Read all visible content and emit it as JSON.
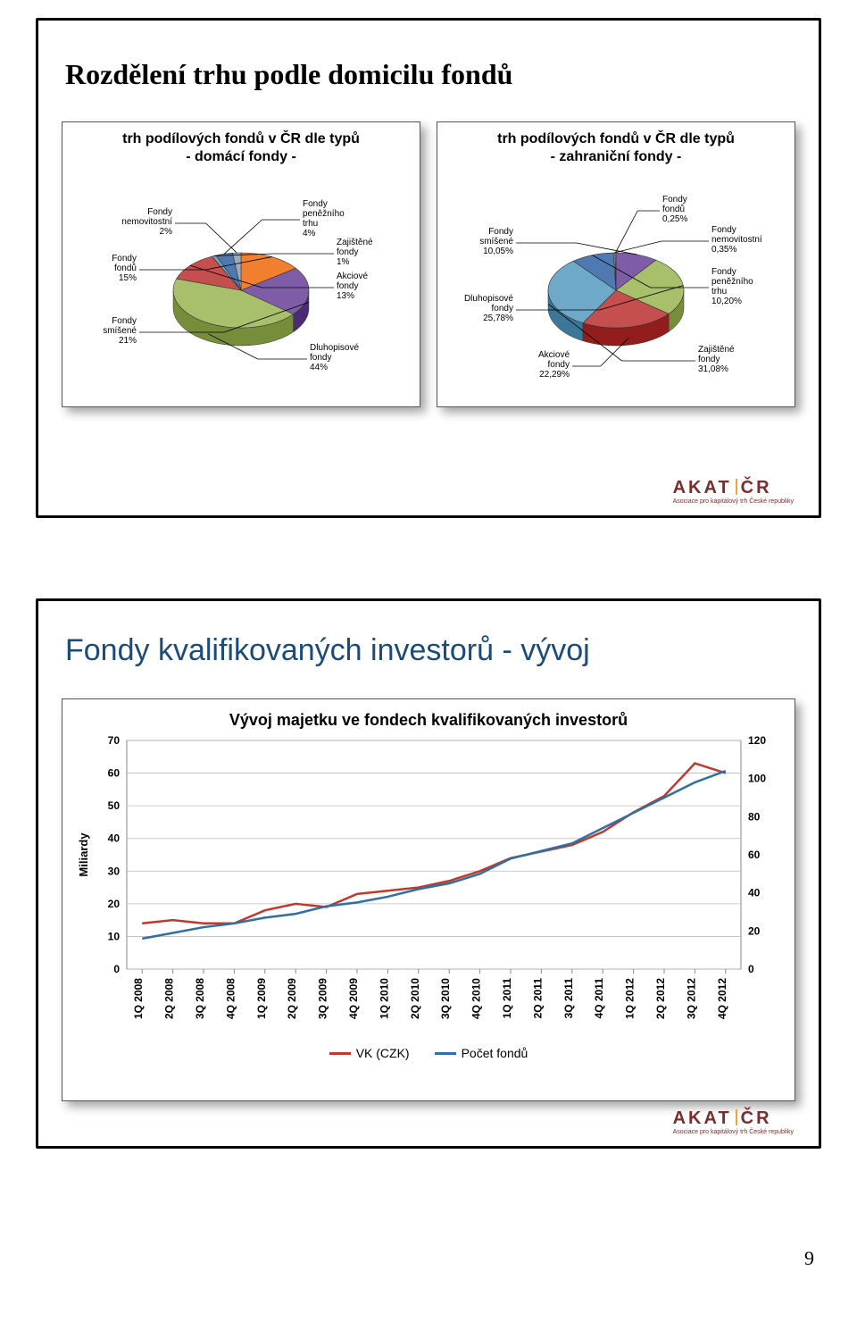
{
  "page_number": "9",
  "slide1": {
    "title": "Rozdělení trhu podle domicilu fondů",
    "left_pie": {
      "type": "pie",
      "title_line1": "trh podílových fondů v ČR dle typů",
      "title_line2": "- domácí fondy -",
      "slices": [
        {
          "label": "Fondy fondů",
          "value": 15,
          "pct": "15%",
          "color": "#f27f2e"
        },
        {
          "label": "Fondy smíšené",
          "value": 21,
          "pct": "21%",
          "color": "#7f5da6"
        },
        {
          "label": "Dluhopisové fondy",
          "value": 44,
          "pct": "44%",
          "color": "#a8c06b"
        },
        {
          "label": "Akciové fondy",
          "value": 13,
          "pct": "13%",
          "color": "#c54e4e"
        },
        {
          "label": "Zajištěné fondy",
          "value": 1,
          "pct": "1%",
          "color": "#6ea9c9"
        },
        {
          "label": "Fondy peněžního trhu",
          "value": 4,
          "pct": "4%",
          "color": "#4f79b1"
        },
        {
          "label": "Fondy nemovitostní",
          "value": 2,
          "pct": "2%",
          "color": "#9aabbd"
        }
      ]
    },
    "right_pie": {
      "type": "pie",
      "title_line1": "trh podílových fondů v ČR dle typů",
      "title_line2": "- zahraniční fondy -",
      "slices": [
        {
          "label": "Fondy smíšené",
          "value": 10.05,
          "pct": "10,05%",
          "color": "#7f5da6"
        },
        {
          "label": "Dluhopisové fondy",
          "value": 25.78,
          "pct": "25,78%",
          "color": "#a8c06b"
        },
        {
          "label": "Akciové fondy",
          "value": 22.29,
          "pct": "22,29%",
          "color": "#c54e4e"
        },
        {
          "label": "Zajištěné fondy",
          "value": 31.08,
          "pct": "31,08%",
          "color": "#6ea9c9"
        },
        {
          "label": "Fondy peněžního trhu",
          "value": 10.2,
          "pct": "10,20%",
          "color": "#4f79b1"
        },
        {
          "label": "Fondy nemovitostní",
          "value": 0.35,
          "pct": "0,35%",
          "color": "#9aabbd"
        },
        {
          "label": "Fondy fondů",
          "value": 0.25,
          "pct": "0,25%",
          "color": "#f27f2e"
        }
      ]
    }
  },
  "slide2": {
    "title": "Fondy kvalifikovaných investorů - vývoj",
    "chart": {
      "type": "line-dual-axis",
      "title": "Vývoj majetku ve fondech kvalifikovaných investorů",
      "x_labels": [
        "1Q 2008",
        "2Q 2008",
        "3Q 2008",
        "4Q 2008",
        "1Q 2009",
        "2Q 2009",
        "3Q 2009",
        "4Q 2009",
        "1Q 2010",
        "2Q 2010",
        "3Q 2010",
        "4Q 2010",
        "1Q 2011",
        "2Q 2011",
        "3Q 2011",
        "4Q 2011",
        "1Q 2012",
        "2Q 2012",
        "3Q 2012",
        "4Q 2012"
      ],
      "y_left": {
        "label": "Miliardy",
        "min": 0,
        "max": 70,
        "step": 10,
        "ticks": [
          0,
          10,
          20,
          30,
          40,
          50,
          60,
          70
        ]
      },
      "y_right": {
        "min": 0,
        "max": 120,
        "step": 20,
        "ticks": [
          0,
          20,
          40,
          60,
          80,
          100,
          120
        ]
      },
      "grid_color": "#bcbcbc",
      "border_color": "#8a8a8a",
      "x_label_fontsize": 12,
      "y_label_fontsize": 12,
      "series": [
        {
          "name": "VK (CZK)",
          "axis": "left",
          "color": "#c0392b",
          "width": 2.5,
          "values": [
            14,
            15,
            14,
            14,
            18,
            20,
            19,
            23,
            24,
            25,
            27,
            30,
            34,
            36,
            38,
            42,
            48,
            53,
            63,
            60
          ]
        },
        {
          "name": "Počet fondů",
          "axis": "right",
          "color": "#2e6fa5",
          "width": 2.5,
          "values": [
            16,
            19,
            22,
            24,
            27,
            29,
            33,
            35,
            38,
            42,
            45,
            50,
            58,
            62,
            66,
            74,
            82,
            90,
            98,
            104
          ]
        }
      ],
      "legend": [
        {
          "label": "VK (CZK)",
          "color": "#c0392b"
        },
        {
          "label": "Počet fondů",
          "color": "#2e6fa5"
        }
      ]
    }
  },
  "logo": {
    "main": "AKAT|ČR",
    "sub": "Asociace pro kapitálový trh České republiky"
  },
  "colors": {
    "slide_border": "#000000",
    "card_shadow": "rgba(0,0,0,.35)",
    "logo_brown": "#7a2d2d",
    "logo_accent": "#f2a33a"
  }
}
